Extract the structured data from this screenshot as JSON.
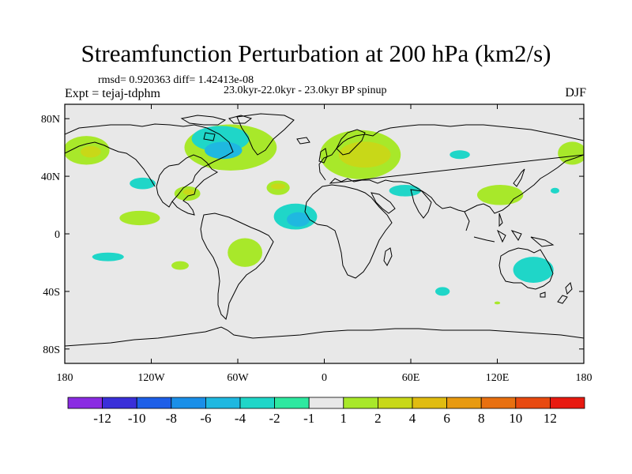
{
  "chart_data": {
    "type": "heatmap",
    "title": "Streamfunction Perturbation at 200 hPa (km2/s)",
    "stats_line": "rmsd= 0.920363 diff= 1.42413e-08",
    "experiment": "Expt = tejaj-tdphm",
    "experiment_description": "23.0kyr-22.0kyr - 23.0kyr BP spinup",
    "season": "DJF",
    "x_ticks": [
      {
        "value": -180,
        "label": "180"
      },
      {
        "value": -120,
        "label": "120W"
      },
      {
        "value": -60,
        "label": "60W"
      },
      {
        "value": 0,
        "label": "0"
      },
      {
        "value": 60,
        "label": "60E"
      },
      {
        "value": 120,
        "label": "120E"
      },
      {
        "value": 180,
        "label": "180"
      }
    ],
    "y_ticks": [
      {
        "value": 80,
        "label": "80N"
      },
      {
        "value": 40,
        "label": "40N"
      },
      {
        "value": 0,
        "label": "0"
      },
      {
        "value": -40,
        "label": "40S"
      },
      {
        "value": -80,
        "label": "80S"
      }
    ],
    "xlim": [
      -180,
      180
    ],
    "ylim": [
      -90,
      90
    ],
    "colorbar": {
      "colors": [
        "#8a2be2",
        "#3a2fd9",
        "#1e5fe8",
        "#1a8fe8",
        "#1fb8e0",
        "#1fd6c8",
        "#2ee8a0",
        "#e8e8e8",
        "#a8e82a",
        "#c8d818",
        "#e0bc10",
        "#e89a10",
        "#e87010",
        "#e84a10",
        "#e81a10"
      ],
      "labels": [
        "-12",
        "-10",
        "-8",
        "-6",
        "-4",
        "-2",
        "-1",
        "1",
        "2",
        "4",
        "6",
        "8",
        "10",
        "12"
      ]
    },
    "anomalies": [
      {
        "lon": -165,
        "lat": 58,
        "rx": 16,
        "ry": 10,
        "level": 2
      },
      {
        "lon": -162,
        "lat": 57,
        "rx": 7,
        "ry": 4,
        "level": 4
      },
      {
        "lon": 172,
        "lat": 56,
        "rx": 10,
        "ry": 8,
        "level": 2
      },
      {
        "lon": -65,
        "lat": 60,
        "rx": 32,
        "ry": 16,
        "level": 2
      },
      {
        "lon": -72,
        "lat": 66,
        "rx": 20,
        "ry": 9,
        "level": -2
      },
      {
        "lon": -70,
        "lat": 58,
        "rx": 13,
        "ry": 6,
        "level": -4
      },
      {
        "lon": -126,
        "lat": 35,
        "rx": 9,
        "ry": 4,
        "level": -2
      },
      {
        "lon": -95,
        "lat": 28,
        "rx": 9,
        "ry": 5,
        "level": 2
      },
      {
        "lon": -94,
        "lat": 29,
        "rx": 4,
        "ry": 2,
        "level": 4
      },
      {
        "lon": -32,
        "lat": 32,
        "rx": 8,
        "ry": 5,
        "level": 2
      },
      {
        "lon": -32,
        "lat": 33,
        "rx": 5,
        "ry": 2,
        "level": 4
      },
      {
        "lon": 25,
        "lat": 55,
        "rx": 28,
        "ry": 17,
        "level": 2
      },
      {
        "lon": 28,
        "lat": 55,
        "rx": 18,
        "ry": 9,
        "level": 4
      },
      {
        "lon": -20,
        "lat": 12,
        "rx": 15,
        "ry": 9,
        "level": -2
      },
      {
        "lon": -18,
        "lat": 10,
        "rx": 8,
        "ry": 5,
        "level": -4
      },
      {
        "lon": 56,
        "lat": 30,
        "rx": 11,
        "ry": 4,
        "level": -2
      },
      {
        "lon": 94,
        "lat": 55,
        "rx": 7,
        "ry": 3,
        "level": -2
      },
      {
        "lon": 122,
        "lat": 27,
        "rx": 16,
        "ry": 7,
        "level": 2
      },
      {
        "lon": 160,
        "lat": 30,
        "rx": 3,
        "ry": 2,
        "level": -2
      },
      {
        "lon": -128,
        "lat": 11,
        "rx": 14,
        "ry": 5,
        "level": 2
      },
      {
        "lon": -150,
        "lat": -16,
        "rx": 11,
        "ry": 3,
        "level": -2
      },
      {
        "lon": -100,
        "lat": -22,
        "rx": 6,
        "ry": 3,
        "level": 2
      },
      {
        "lon": -55,
        "lat": -13,
        "rx": 12,
        "ry": 10,
        "level": 2
      },
      {
        "lon": 82,
        "lat": -40,
        "rx": 5,
        "ry": 3,
        "level": -2
      },
      {
        "lon": 145,
        "lat": -25,
        "rx": 14,
        "ry": 9,
        "level": -2
      },
      {
        "lon": 120,
        "lat": -48,
        "rx": 2,
        "ry": 1,
        "level": 2
      }
    ]
  }
}
